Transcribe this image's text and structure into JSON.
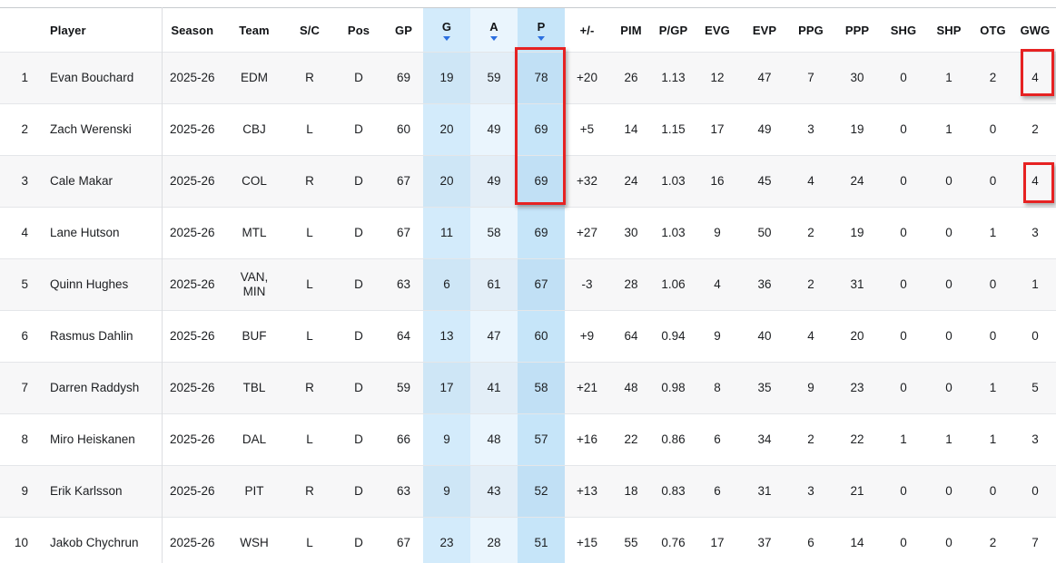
{
  "theme": {
    "sort_arrow_color": "#2b6fe0",
    "annotation_color": "#e62222",
    "stripe_color": "#f7f7f8",
    "highlight_g": "#d5ecfb",
    "highlight_a": "#ebf5fd",
    "highlight_p": "#c9e6fa"
  },
  "table": {
    "columns": [
      {
        "key": "rank",
        "label": "",
        "sort_icon": false
      },
      {
        "key": "player",
        "label": "Player",
        "sort_icon": false
      },
      {
        "key": "season",
        "label": "Season",
        "sort_icon": false
      },
      {
        "key": "team",
        "label": "Team",
        "sort_icon": false
      },
      {
        "key": "shoots_catches",
        "label": "S/C",
        "sort_icon": false
      },
      {
        "key": "pos",
        "label": "Pos",
        "sort_icon": false
      },
      {
        "key": "gp",
        "label": "GP",
        "sort_icon": false
      },
      {
        "key": "g",
        "label": "G",
        "sort_icon": true,
        "highlight": "g"
      },
      {
        "key": "a",
        "label": "A",
        "sort_icon": true,
        "highlight": "a"
      },
      {
        "key": "p",
        "label": "P",
        "sort_icon": true,
        "highlight": "p"
      },
      {
        "key": "plus_minus",
        "label": "+/-",
        "sort_icon": false
      },
      {
        "key": "pim",
        "label": "PIM",
        "sort_icon": false
      },
      {
        "key": "pgp",
        "label": "P/GP",
        "sort_icon": false
      },
      {
        "key": "evg",
        "label": "EVG",
        "sort_icon": false
      },
      {
        "key": "evp",
        "label": "EVP",
        "sort_icon": false
      },
      {
        "key": "ppg",
        "label": "PPG",
        "sort_icon": false
      },
      {
        "key": "ppp",
        "label": "PPP",
        "sort_icon": false
      },
      {
        "key": "shg",
        "label": "SHG",
        "sort_icon": false
      },
      {
        "key": "shp",
        "label": "SHP",
        "sort_icon": false
      },
      {
        "key": "otg",
        "label": "OTG",
        "sort_icon": false
      },
      {
        "key": "gwg",
        "label": "GWG",
        "sort_icon": false
      }
    ],
    "rows": [
      {
        "rank": "1",
        "player": "Evan Bouchard",
        "season": "2025-26",
        "team": "EDM",
        "shoots_catches": "R",
        "pos": "D",
        "gp": "69",
        "g": "19",
        "a": "59",
        "p": "78",
        "plus_minus": "+20",
        "pim": "26",
        "pgp": "1.13",
        "evg": "12",
        "evp": "47",
        "ppg": "7",
        "ppp": "30",
        "shg": "0",
        "shp": "1",
        "otg": "2",
        "gwg": "4"
      },
      {
        "rank": "2",
        "player": "Zach Werenski",
        "season": "2025-26",
        "team": "CBJ",
        "shoots_catches": "L",
        "pos": "D",
        "gp": "60",
        "g": "20",
        "a": "49",
        "p": "69",
        "plus_minus": "+5",
        "pim": "14",
        "pgp": "1.15",
        "evg": "17",
        "evp": "49",
        "ppg": "3",
        "ppp": "19",
        "shg": "0",
        "shp": "1",
        "otg": "0",
        "gwg": "2"
      },
      {
        "rank": "3",
        "player": "Cale Makar",
        "season": "2025-26",
        "team": "COL",
        "shoots_catches": "R",
        "pos": "D",
        "gp": "67",
        "g": "20",
        "a": "49",
        "p": "69",
        "plus_minus": "+32",
        "pim": "24",
        "pgp": "1.03",
        "evg": "16",
        "evp": "45",
        "ppg": "4",
        "ppp": "24",
        "shg": "0",
        "shp": "0",
        "otg": "0",
        "gwg": "4"
      },
      {
        "rank": "4",
        "player": "Lane Hutson",
        "season": "2025-26",
        "team": "MTL",
        "shoots_catches": "L",
        "pos": "D",
        "gp": "67",
        "g": "11",
        "a": "58",
        "p": "69",
        "plus_minus": "+27",
        "pim": "30",
        "pgp": "1.03",
        "evg": "9",
        "evp": "50",
        "ppg": "2",
        "ppp": "19",
        "shg": "0",
        "shp": "0",
        "otg": "1",
        "gwg": "3"
      },
      {
        "rank": "5",
        "player": "Quinn Hughes",
        "season": "2025-26",
        "team": "VAN,\nMIN",
        "shoots_catches": "L",
        "pos": "D",
        "gp": "63",
        "g": "6",
        "a": "61",
        "p": "67",
        "plus_minus": "-3",
        "pim": "28",
        "pgp": "1.06",
        "evg": "4",
        "evp": "36",
        "ppg": "2",
        "ppp": "31",
        "shg": "0",
        "shp": "0",
        "otg": "0",
        "gwg": "1"
      },
      {
        "rank": "6",
        "player": "Rasmus Dahlin",
        "season": "2025-26",
        "team": "BUF",
        "shoots_catches": "L",
        "pos": "D",
        "gp": "64",
        "g": "13",
        "a": "47",
        "p": "60",
        "plus_minus": "+9",
        "pim": "64",
        "pgp": "0.94",
        "evg": "9",
        "evp": "40",
        "ppg": "4",
        "ppp": "20",
        "shg": "0",
        "shp": "0",
        "otg": "0",
        "gwg": "0"
      },
      {
        "rank": "7",
        "player": "Darren Raddysh",
        "season": "2025-26",
        "team": "TBL",
        "shoots_catches": "R",
        "pos": "D",
        "gp": "59",
        "g": "17",
        "a": "41",
        "p": "58",
        "plus_minus": "+21",
        "pim": "48",
        "pgp": "0.98",
        "evg": "8",
        "evp": "35",
        "ppg": "9",
        "ppp": "23",
        "shg": "0",
        "shp": "0",
        "otg": "1",
        "gwg": "5"
      },
      {
        "rank": "8",
        "player": "Miro Heiskanen",
        "season": "2025-26",
        "team": "DAL",
        "shoots_catches": "L",
        "pos": "D",
        "gp": "66",
        "g": "9",
        "a": "48",
        "p": "57",
        "plus_minus": "+16",
        "pim": "22",
        "pgp": "0.86",
        "evg": "6",
        "evp": "34",
        "ppg": "2",
        "ppp": "22",
        "shg": "1",
        "shp": "1",
        "otg": "1",
        "gwg": "3"
      },
      {
        "rank": "9",
        "player": "Erik Karlsson",
        "season": "2025-26",
        "team": "PIT",
        "shoots_catches": "R",
        "pos": "D",
        "gp": "63",
        "g": "9",
        "a": "43",
        "p": "52",
        "plus_minus": "+13",
        "pim": "18",
        "pgp": "0.83",
        "evg": "6",
        "evp": "31",
        "ppg": "3",
        "ppp": "21",
        "shg": "0",
        "shp": "0",
        "otg": "0",
        "gwg": "0"
      },
      {
        "rank": "10",
        "player": "Jakob Chychrun",
        "season": "2025-26",
        "team": "WSH",
        "shoots_catches": "L",
        "pos": "D",
        "gp": "67",
        "g": "23",
        "a": "28",
        "p": "51",
        "plus_minus": "+15",
        "pim": "55",
        "pgp": "0.76",
        "evg": "17",
        "evp": "37",
        "ppg": "6",
        "ppp": "14",
        "shg": "0",
        "shp": "0",
        "otg": "2",
        "gwg": "7"
      }
    ]
  },
  "annotations": [
    {
      "id": "p-column-box",
      "target": "P column values, rows 1-3 (78, 69, 69)"
    },
    {
      "id": "gwg-row1-box",
      "target": "GWG value 4, row 1 (Evan Bouchard)"
    },
    {
      "id": "gwg-row3-box",
      "target": "GWG value 4, row 3 (Cale Makar)"
    }
  ]
}
